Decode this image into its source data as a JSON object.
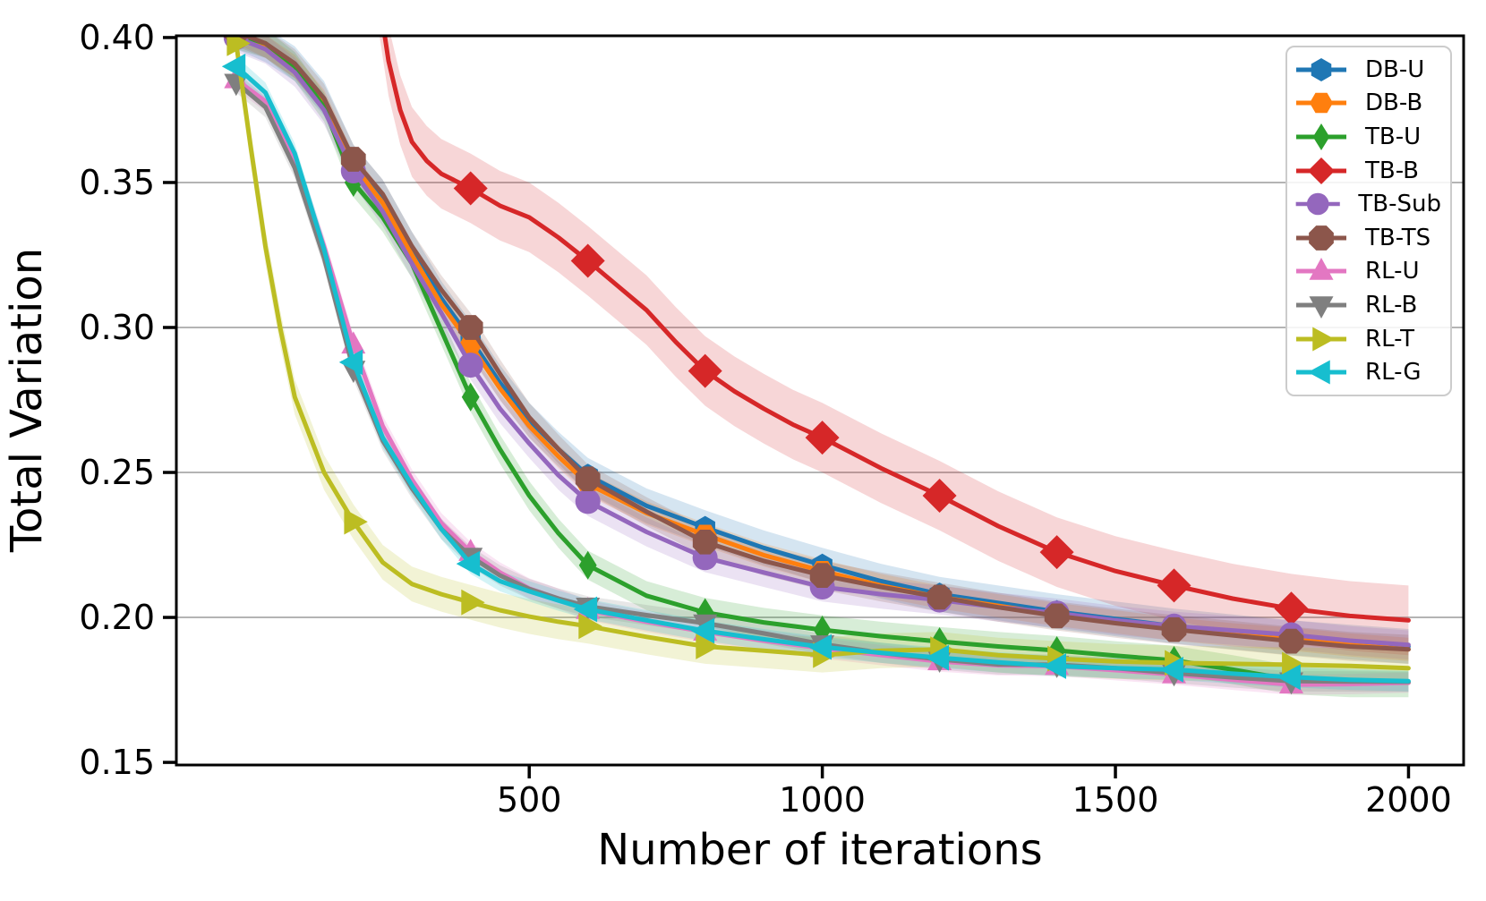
{
  "chart_data": {
    "type": "line",
    "title": "",
    "xlabel": "Number of iterations",
    "ylabel": "Total Variation",
    "xlim": [
      -102,
      2094
    ],
    "ylim": [
      0.1491,
      0.4006
    ],
    "grid": "horizontal",
    "grid_color": "#b4b4b4",
    "legend_position": "upper right",
    "xticks": [
      {
        "v": 500,
        "label": "500"
      },
      {
        "v": 1000,
        "label": "1000"
      },
      {
        "v": 1500,
        "label": "1500"
      },
      {
        "v": 2000,
        "label": "2000"
      }
    ],
    "yticks": [
      {
        "v": 0.15,
        "label": "0.15"
      },
      {
        "v": 0.2,
        "label": "0.20"
      },
      {
        "v": 0.25,
        "label": "0.25"
      },
      {
        "v": 0.3,
        "label": "0.30"
      },
      {
        "v": 0.35,
        "label": "0.35"
      },
      {
        "v": 0.4,
        "label": "0.40"
      }
    ],
    "marker_interval": 200,
    "series": [
      {
        "name": "DB-U",
        "color": "#1f77b4",
        "marker": "hexagon-pointy",
        "msize": 13,
        "band": 0.006,
        "markers_from": 0,
        "markers_to": 1800,
        "x": [
          0,
          50,
          100,
          150,
          200,
          250,
          300,
          350,
          400,
          450,
          500,
          550,
          600,
          700,
          800,
          900,
          1000,
          1100,
          1200,
          1300,
          1400,
          1500,
          1600,
          1700,
          1800,
          1900,
          2000
        ],
        "y": [
          0.402,
          0.3975,
          0.391,
          0.379,
          0.357,
          0.345,
          0.327,
          0.31,
          0.296,
          0.281,
          0.268,
          0.258,
          0.249,
          0.2385,
          0.231,
          0.224,
          0.218,
          0.2125,
          0.208,
          0.205,
          0.202,
          0.1995,
          0.197,
          0.195,
          0.193,
          0.1915,
          0.19
        ]
      },
      {
        "name": "DB-B",
        "color": "#ff7f0e",
        "marker": "hexagon-flat",
        "msize": 13,
        "band": 0.004,
        "markers_from": 0,
        "markers_to": 1800,
        "x": [
          0,
          50,
          100,
          150,
          200,
          250,
          300,
          350,
          400,
          450,
          500,
          550,
          600,
          700,
          800,
          900,
          1000,
          1100,
          1200,
          1300,
          1400,
          1500,
          1600,
          1700,
          1800,
          1900,
          2000
        ],
        "y": [
          0.402,
          0.397,
          0.39,
          0.378,
          0.356,
          0.343,
          0.325,
          0.308,
          0.294,
          0.279,
          0.266,
          0.2555,
          0.246,
          0.236,
          0.2285,
          0.2215,
          0.216,
          0.211,
          0.207,
          0.204,
          0.201,
          0.1985,
          0.196,
          0.194,
          0.1925,
          0.1905,
          0.189
        ]
      },
      {
        "name": "TB-U",
        "color": "#2ca02c",
        "marker": "thin-diamond",
        "msize": 16,
        "band": 0.005,
        "markers_from": 0,
        "markers_to": 1800,
        "x": [
          0,
          50,
          100,
          150,
          200,
          250,
          300,
          350,
          400,
          450,
          500,
          550,
          600,
          700,
          800,
          900,
          1000,
          1100,
          1200,
          1300,
          1400,
          1500,
          1600,
          1700,
          1800,
          1900,
          2000
        ],
        "y": [
          0.401,
          0.398,
          0.39,
          0.376,
          0.35,
          0.338,
          0.322,
          0.299,
          0.276,
          0.258,
          0.242,
          0.229,
          0.218,
          0.2075,
          0.2017,
          0.1983,
          0.1957,
          0.1935,
          0.1917,
          0.19,
          0.1886,
          0.1868,
          0.1852,
          0.182,
          0.1785,
          0.1775,
          0.1775
        ]
      },
      {
        "name": "TB-B",
        "color": "#d62728",
        "marker": "diamond",
        "msize": 19,
        "band": 0.012,
        "markers_from": 400,
        "markers_to": 1800,
        "x": [
          245,
          260,
          280,
          300,
          325,
          350,
          400,
          450,
          500,
          550,
          600,
          650,
          700,
          750,
          800,
          850,
          900,
          950,
          1000,
          1100,
          1200,
          1300,
          1400,
          1500,
          1600,
          1700,
          1800,
          1900,
          2000
        ],
        "y": [
          0.412,
          0.392,
          0.375,
          0.364,
          0.3575,
          0.353,
          0.348,
          0.342,
          0.338,
          0.331,
          0.323,
          0.3145,
          0.306,
          0.295,
          0.285,
          0.278,
          0.272,
          0.2665,
          0.262,
          0.2515,
          0.242,
          0.2315,
          0.2225,
          0.216,
          0.211,
          0.2065,
          0.203,
          0.2005,
          0.199
        ]
      },
      {
        "name": "TB-Sub",
        "color": "#9467bd",
        "marker": "circle",
        "msize": 14,
        "band": 0.005,
        "markers_from": 0,
        "markers_to": 1800,
        "x": [
          0,
          50,
          100,
          150,
          200,
          250,
          300,
          350,
          400,
          450,
          500,
          550,
          600,
          700,
          800,
          900,
          1000,
          1100,
          1200,
          1300,
          1400,
          1500,
          1600,
          1700,
          1800,
          1900,
          2000
        ],
        "y": [
          0.4,
          0.396,
          0.388,
          0.375,
          0.354,
          0.34,
          0.322,
          0.305,
          0.287,
          0.272,
          0.26,
          0.249,
          0.24,
          0.2295,
          0.2206,
          0.2155,
          0.2105,
          0.208,
          0.206,
          0.2035,
          0.2015,
          0.199,
          0.197,
          0.1955,
          0.194,
          0.192,
          0.1905
        ]
      },
      {
        "name": "TB-TS",
        "color": "#8c564b",
        "marker": "octagon",
        "msize": 15,
        "band": 0.005,
        "markers_from": 0,
        "markers_to": 1800,
        "x": [
          0,
          50,
          100,
          150,
          200,
          250,
          300,
          350,
          400,
          450,
          500,
          550,
          600,
          700,
          800,
          900,
          1000,
          1100,
          1200,
          1300,
          1400,
          1500,
          1600,
          1700,
          1800,
          1900,
          2000
        ],
        "y": [
          0.402,
          0.398,
          0.391,
          0.379,
          0.358,
          0.346,
          0.328,
          0.313,
          0.3,
          0.284,
          0.269,
          0.258,
          0.2478,
          0.2365,
          0.226,
          0.2195,
          0.2145,
          0.2105,
          0.207,
          0.2035,
          0.2005,
          0.198,
          0.1958,
          0.1938,
          0.1918,
          0.19,
          0.189
        ]
      },
      {
        "name": "RL-U",
        "color": "#e377c2",
        "marker": "triangle-up",
        "msize": 15,
        "band": 0.0035,
        "markers_from": 0,
        "markers_to": 1800,
        "x": [
          0,
          50,
          100,
          150,
          200,
          250,
          300,
          350,
          400,
          450,
          500,
          550,
          600,
          700,
          800,
          900,
          1000,
          1100,
          1200,
          1300,
          1400,
          1500,
          1600,
          1700,
          1800,
          1900,
          2000
        ],
        "y": [
          0.3855,
          0.378,
          0.358,
          0.328,
          0.294,
          0.266,
          0.2475,
          0.2325,
          0.2225,
          0.2155,
          0.21,
          0.2065,
          0.2025,
          0.1985,
          0.195,
          0.192,
          0.1893,
          0.187,
          0.1848,
          0.1835,
          0.1832,
          0.1818,
          0.1803,
          0.1785,
          0.1768,
          0.177,
          0.1775
        ]
      },
      {
        "name": "RL-B",
        "color": "#7f7f7f",
        "marker": "triangle-down",
        "msize": 15,
        "band": 0.0035,
        "markers_from": 0,
        "markers_to": 1800,
        "x": [
          0,
          50,
          100,
          150,
          200,
          250,
          300,
          350,
          400,
          450,
          500,
          550,
          600,
          700,
          800,
          900,
          1000,
          1100,
          1200,
          1300,
          1400,
          1500,
          1600,
          1700,
          1800,
          1900,
          2000
        ],
        "y": [
          0.3845,
          0.376,
          0.355,
          0.324,
          0.2855,
          0.261,
          0.2445,
          0.2305,
          0.221,
          0.2145,
          0.2098,
          0.2065,
          0.2038,
          0.2008,
          0.198,
          0.1945,
          0.1908,
          0.1878,
          0.1855,
          0.1838,
          0.1837,
          0.1825,
          0.1808,
          0.1793,
          0.178,
          0.1779,
          0.1778
        ]
      },
      {
        "name": "RL-T",
        "color": "#bcbd22",
        "marker": "triangle-right",
        "msize": 16,
        "band": 0.006,
        "markers_from": 0,
        "markers_to": 1800,
        "x": [
          0,
          25,
          50,
          75,
          100,
          150,
          200,
          250,
          300,
          350,
          400,
          450,
          500,
          550,
          600,
          700,
          800,
          900,
          1000,
          1100,
          1200,
          1300,
          1400,
          1500,
          1600,
          1700,
          1800,
          1900,
          2000
        ],
        "y": [
          0.398,
          0.362,
          0.328,
          0.3,
          0.276,
          0.25,
          0.233,
          0.219,
          0.2115,
          0.208,
          0.2052,
          0.2025,
          0.2003,
          0.1985,
          0.197,
          0.1933,
          0.19,
          0.1885,
          0.187,
          0.1885,
          0.189,
          0.187,
          0.1858,
          0.1848,
          0.1843,
          0.184,
          0.1837,
          0.1833,
          0.1825
        ]
      },
      {
        "name": "RL-G",
        "color": "#17becf",
        "marker": "triangle-left",
        "msize": 16,
        "band": 0.0035,
        "markers_from": 0,
        "markers_to": 1800,
        "x": [
          0,
          50,
          100,
          150,
          200,
          250,
          300,
          350,
          400,
          450,
          500,
          550,
          600,
          700,
          800,
          900,
          1000,
          1100,
          1200,
          1300,
          1400,
          1500,
          1600,
          1700,
          1800,
          1900,
          2000
        ],
        "y": [
          0.39,
          0.381,
          0.36,
          0.327,
          0.288,
          0.262,
          0.2455,
          0.2305,
          0.2185,
          0.2125,
          0.209,
          0.2058,
          0.2028,
          0.199,
          0.1954,
          0.1925,
          0.1898,
          0.1878,
          0.1861,
          0.1845,
          0.1832,
          0.1825,
          0.182,
          0.1806,
          0.1794,
          0.1785,
          0.178
        ]
      }
    ]
  }
}
